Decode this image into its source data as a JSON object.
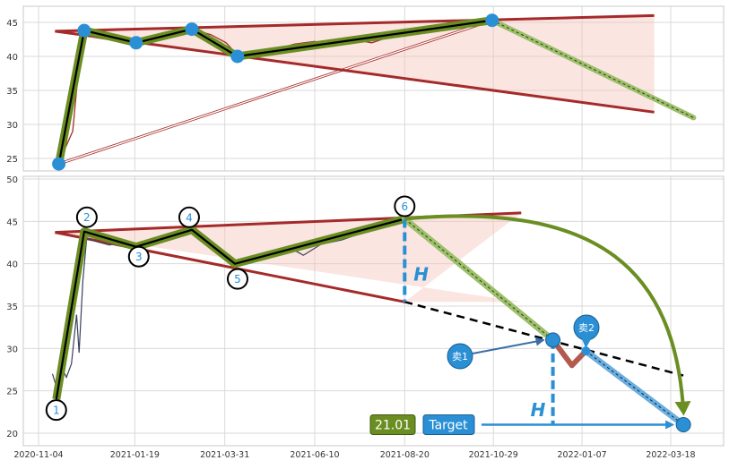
{
  "colors": {
    "panel_bg": "#ffffff",
    "grid": "#d9d9d9",
    "frame": "#c8c8c8",
    "price_line": "#a52a2a",
    "trend_line": "#a52a2a",
    "fill": "#f5c6bd",
    "pattern_outer": "#6b8e23",
    "pattern_inner": "#000000",
    "projection": "#9cbf6a",
    "point": "#2a8fd4",
    "blue_line": "#2a8fd4",
    "down_move": "#b35a4f",
    "up_move": "#6aaee0",
    "target_box": "#2a8fd4",
    "value_box": "#6b8e23"
  },
  "chart_data": [
    {
      "type": "line",
      "panel": "top",
      "x_unit": "date",
      "ylim": [
        23,
        47
      ],
      "y_ticks": [
        25,
        30,
        35,
        40,
        45
      ],
      "grid": true,
      "series": [
        {
          "points": [
            [
              "2020-11-20",
              24.2
            ],
            [
              "2020-11-25",
              26.5
            ],
            [
              "2020-12-01",
              29
            ],
            [
              "2020-12-05",
              37
            ],
            [
              "2020-12-10",
              43.5
            ],
            [
              "2020-12-18",
              42.8
            ],
            [
              "2020-12-28",
              42.5
            ],
            [
              "2021-01-08",
              42.7
            ],
            [
              "2021-01-20",
              42.0
            ],
            [
              "2021-02-05",
              42.5
            ],
            [
              "2021-02-20",
              43.3
            ],
            [
              "2021-03-05",
              44.0
            ],
            [
              "2021-03-20",
              43.2
            ],
            [
              "2021-04-01",
              42.0
            ],
            [
              "2021-04-10",
              40.2
            ],
            [
              "2021-04-25",
              40.6
            ],
            [
              "2021-05-10",
              41.0
            ],
            [
              "2021-05-25",
              41.8
            ],
            [
              "2021-06-10",
              42.2
            ],
            [
              "2021-06-25",
              41.5
            ],
            [
              "2021-07-10",
              42.5
            ],
            [
              "2021-07-25",
              42.0
            ],
            [
              "2021-08-10",
              43.0
            ],
            [
              "2021-08-25",
              43.8
            ],
            [
              "2021-09-10",
              44.2
            ],
            [
              "2021-09-25",
              45.0
            ],
            [
              "2021-10-10",
              45.2
            ],
            [
              "2021-10-20",
              45.5
            ],
            [
              "2021-10-28",
              45.3
            ]
          ]
        }
      ],
      "pattern_points": [
        [
          "2020-11-20",
          24.2
        ],
        [
          "2020-12-10",
          43.8
        ],
        [
          "2021-01-20",
          42.0
        ],
        [
          "2021-03-05",
          44.0
        ],
        [
          "2021-04-10",
          40.0
        ],
        [
          "2021-10-28",
          45.3
        ]
      ],
      "upper_line": [
        [
          "2020-11-17",
          43.7
        ],
        [
          "2022-03-05",
          46.0
        ]
      ],
      "lower_line": [
        [
          "2020-11-17",
          43.7
        ],
        [
          "2022-03-05",
          31.8
        ]
      ],
      "projection": [
        [
          "2021-10-28",
          45.3
        ],
        [
          "2022-04-05",
          31.0
        ]
      ],
      "thin_line": [
        [
          "2020-11-20",
          24.2
        ],
        [
          "2021-10-28",
          45.3
        ]
      ]
    },
    {
      "type": "line",
      "panel": "bottom",
      "x_unit": "date",
      "ylim": [
        19,
        50
      ],
      "y_ticks": [
        20,
        25,
        30,
        35,
        40,
        45,
        50
      ],
      "x_ticks": [
        "2020-11-04",
        "2021-01-19",
        "2021-03-31",
        "2021-06-10",
        "2021-08-20",
        "2021-10-29",
        "2022-01-07",
        "2022-03-18"
      ],
      "grid": true,
      "series": [
        {
          "points": [
            [
              "2020-11-15",
              27.0
            ],
            [
              "2020-11-18",
              25.5
            ],
            [
              "2020-11-22",
              27.8
            ],
            [
              "2020-11-26",
              26.6
            ],
            [
              "2020-11-30",
              28.2
            ],
            [
              "2020-12-04",
              34
            ],
            [
              "2020-12-06",
              29.5
            ],
            [
              "2020-12-09",
              38
            ],
            [
              "2020-12-12",
              43.0
            ],
            [
              "2020-12-20",
              42.6
            ],
            [
              "2020-12-30",
              42.2
            ],
            [
              "2021-01-10",
              42.6
            ],
            [
              "2021-01-25",
              42.0
            ],
            [
              "2021-02-10",
              42.8
            ],
            [
              "2021-02-25",
              43.5
            ],
            [
              "2021-03-05",
              44.0
            ],
            [
              "2021-03-15",
              43.0
            ],
            [
              "2021-03-25",
              41.5
            ],
            [
              "2021-04-05",
              40.2
            ],
            [
              "2021-04-20",
              40.8
            ],
            [
              "2021-05-05",
              41.2
            ],
            [
              "2021-05-20",
              42.0
            ],
            [
              "2021-06-01",
              41.0
            ],
            [
              "2021-06-15",
              42.3
            ],
            [
              "2021-07-01",
              42.8
            ],
            [
              "2021-07-15",
              43.5
            ],
            [
              "2021-07-30",
              44.5
            ],
            [
              "2021-08-10",
              44.8
            ],
            [
              "2021-08-18",
              45.2
            ]
          ]
        }
      ],
      "pattern_points": [
        {
          "label": "1",
          "x": "2020-11-18",
          "y": 24.0
        },
        {
          "label": "2",
          "x": "2020-12-10",
          "y": 43.8
        },
        {
          "label": "3",
          "x": "2021-01-20",
          "y": 42.0
        },
        {
          "label": "4",
          "x": "2021-03-05",
          "y": 44.0
        },
        {
          "label": "5",
          "x": "2021-04-08",
          "y": 40.0
        },
        {
          "label": "6",
          "x": "2021-08-20",
          "y": 45.3
        }
      ],
      "upper_line": [
        [
          "2020-11-17",
          43.7
        ],
        [
          "2021-11-20",
          46.0
        ]
      ],
      "lower_line": [
        [
          "2020-11-17",
          43.7
        ],
        [
          "2021-08-20",
          35.5
        ]
      ],
      "lower_line_extension": [
        [
          "2021-08-20",
          35.5
        ],
        [
          "2022-03-28",
          26.8
        ]
      ],
      "projection": [
        [
          "2021-08-20",
          45.3
        ],
        [
          "2021-12-15",
          31.0
        ]
      ],
      "trade_path": [
        [
          "2021-12-15",
          31.0
        ],
        [
          "2021-12-30",
          28.0
        ],
        [
          "2022-01-10",
          29.7
        ],
        [
          "2022-03-28",
          21.0
        ]
      ],
      "target": {
        "label": "Target",
        "value": "21.01",
        "x": "2022-03-28",
        "y": 21.0
      },
      "sell_1": {
        "label": "卖1",
        "x": "2021-12-15",
        "y": 31.0
      },
      "sell_2": {
        "label": "卖2",
        "x": "2022-01-10",
        "y": 29.7
      },
      "height_label": "H"
    }
  ]
}
